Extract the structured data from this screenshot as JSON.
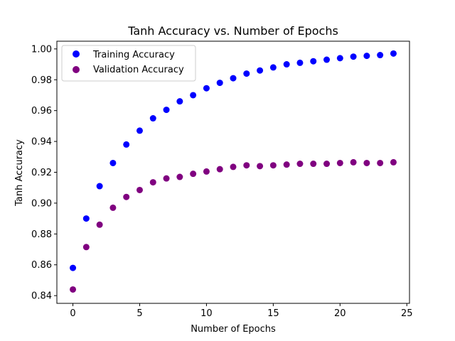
{
  "chart_data": {
    "type": "scatter",
    "title": "Tanh Accuracy vs. Number of Epochs",
    "xlabel": "Number of Epochs",
    "ylabel": "Tanh Accuracy",
    "xlim": [
      -1.2,
      25.2
    ],
    "ylim": [
      0.835,
      1.005
    ],
    "xticks": [
      0,
      5,
      10,
      15,
      20,
      25
    ],
    "yticks": [
      0.84,
      0.86,
      0.88,
      0.9,
      0.92,
      0.94,
      0.96,
      0.98,
      1.0
    ],
    "ytick_labels": [
      "0.84",
      "0.86",
      "0.88",
      "0.90",
      "0.92",
      "0.94",
      "0.96",
      "0.98",
      "1.00"
    ],
    "grid": false,
    "legend_position": "upper-left",
    "x": [
      0,
      1,
      2,
      3,
      4,
      5,
      6,
      7,
      8,
      9,
      10,
      11,
      12,
      13,
      14,
      15,
      16,
      17,
      18,
      19,
      20,
      21,
      22,
      23,
      24
    ],
    "series": [
      {
        "name": "Training Accuracy",
        "color": "#0000ff",
        "values": [
          0.858,
          0.89,
          0.911,
          0.926,
          0.938,
          0.947,
          0.955,
          0.9605,
          0.966,
          0.97,
          0.9745,
          0.978,
          0.981,
          0.984,
          0.986,
          0.988,
          0.99,
          0.991,
          0.992,
          0.993,
          0.994,
          0.995,
          0.9955,
          0.996,
          0.997
        ]
      },
      {
        "name": "Validation Accuracy",
        "color": "#800080",
        "values": [
          0.844,
          0.8715,
          0.886,
          0.897,
          0.904,
          0.9085,
          0.9135,
          0.916,
          0.917,
          0.919,
          0.9205,
          0.922,
          0.9235,
          0.9245,
          0.924,
          0.9245,
          0.925,
          0.9255,
          0.9255,
          0.9255,
          0.926,
          0.9265,
          0.926,
          0.926,
          0.9265
        ]
      }
    ]
  }
}
